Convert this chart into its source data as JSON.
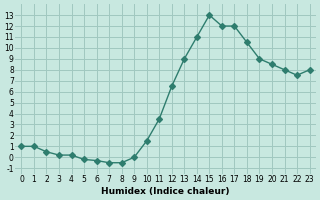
{
  "x": [
    0,
    1,
    2,
    3,
    4,
    5,
    6,
    7,
    8,
    9,
    10,
    11,
    12,
    13,
    14,
    15,
    16,
    17,
    18,
    19,
    20,
    21,
    22,
    23
  ],
  "y": [
    1,
    1,
    0.5,
    0.2,
    0.2,
    -0.2,
    -0.3,
    -0.5,
    -0.5,
    0,
    1.5,
    3.5,
    6.5,
    9,
    11,
    13,
    12,
    12,
    10.5,
    9,
    8.5,
    8,
    7.5,
    8
  ],
  "line_color": "#2e7d6e",
  "marker": "D",
  "marker_size": 3,
  "bg_color": "#c8e8e0",
  "grid_color": "#a0c8c0",
  "xlabel": "Humidex (Indice chaleur)",
  "xlim": [
    -0.5,
    23.5
  ],
  "ylim": [
    -1.5,
    14
  ],
  "yticks": [
    -1,
    0,
    1,
    2,
    3,
    4,
    5,
    6,
    7,
    8,
    9,
    10,
    11,
    12,
    13
  ],
  "xticks": [
    0,
    1,
    2,
    3,
    4,
    5,
    6,
    7,
    8,
    9,
    10,
    11,
    12,
    13,
    14,
    15,
    16,
    17,
    18,
    19,
    20,
    21,
    22,
    23
  ]
}
